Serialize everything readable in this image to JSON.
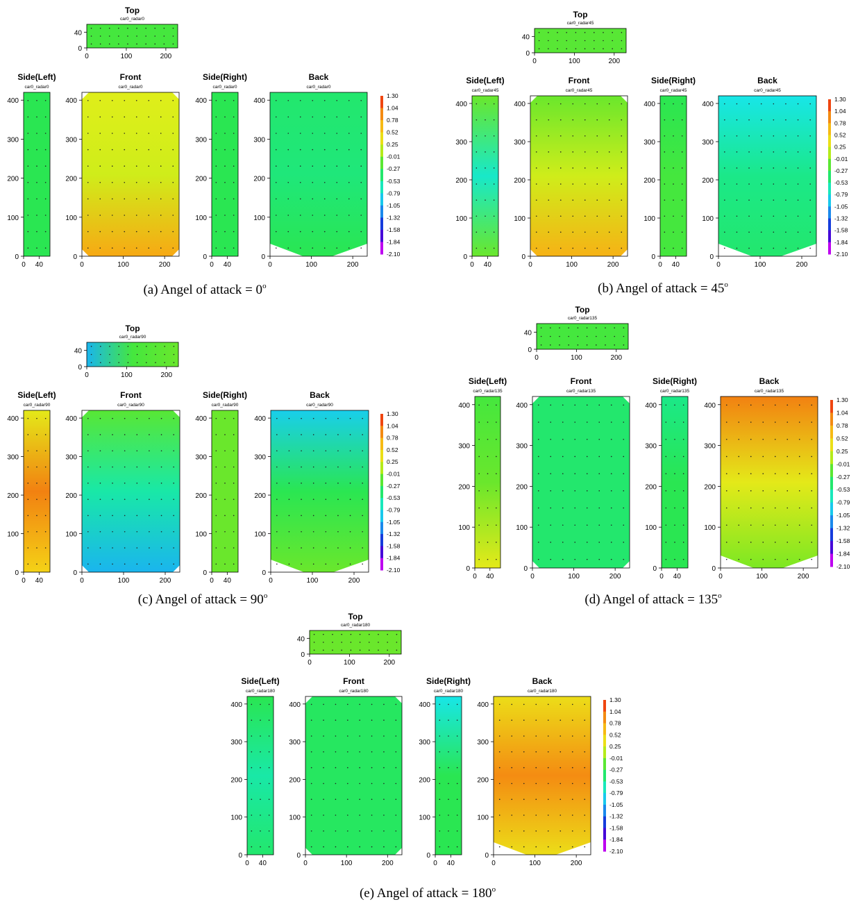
{
  "colors": {
    "scale": [
      "#ff00ff",
      "#7a00e0",
      "#1010d0",
      "#1a6ae8",
      "#1aa8f0",
      "#18e8e8",
      "#19e890",
      "#2ce64a",
      "#8ce81c",
      "#e0ee1a",
      "#f5d016",
      "#f7a514",
      "#f06f10",
      "#ee1e10"
    ]
  },
  "chart_data": {
    "type": "heatmap",
    "description_units": {
      "x": "position",
      "y": "position"
    },
    "colorbar": {
      "min": -2.1,
      "max": 1.3,
      "ticks": [
        "1.30",
        "1.04",
        "0.78",
        "0.52",
        "0.25",
        "-0.01",
        "-0.27",
        "-0.53",
        "-0.79",
        "-1.05",
        "-1.32",
        "-1.58",
        "-1.84",
        "-2.10"
      ]
    },
    "views": [
      {
        "title": "Top",
        "xlim": [
          0,
          230
        ],
        "ylim": [
          0,
          60
        ],
        "xticks": [
          "0",
          "100",
          "200"
        ],
        "yticks": [
          "0",
          "40"
        ]
      },
      {
        "title": "Side(Left)",
        "xlim": [
          0,
          68
        ],
        "ylim": [
          0,
          420
        ],
        "xticks": [
          "0",
          "40"
        ],
        "yticks": [
          "0",
          "100",
          "200",
          "300",
          "400"
        ]
      },
      {
        "title": "Front",
        "xlim": [
          0,
          235
        ],
        "ylim": [
          0,
          420
        ],
        "xticks": [
          "0",
          "100",
          "200"
        ],
        "yticks": [
          "0",
          "100",
          "200",
          "300",
          "400"
        ]
      },
      {
        "title": "Side(Right)",
        "xlim": [
          0,
          68
        ],
        "ylim": [
          0,
          420
        ],
        "xticks": [
          "0",
          "40"
        ],
        "yticks": [
          "0",
          "100",
          "200",
          "300",
          "400"
        ]
      },
      {
        "title": "Back",
        "xlim": [
          0,
          235
        ],
        "ylim": [
          0,
          420
        ],
        "xticks": [
          "0",
          "100",
          "200"
        ],
        "yticks": [
          "0",
          "100",
          "200",
          "300",
          "400"
        ]
      }
    ],
    "panels": [
      {
        "caption_label": "(a) Angel of attack = 0",
        "caption_sup": "o",
        "subtitles": [
          "car0_radar0",
          "car0_radar0",
          "car0_radar0",
          "car0_radar0",
          "car0_radar0"
        ],
        "levels": {
          "top": [
            -0.2,
            -0.2,
            -0.2
          ],
          "left": [
            -0.3,
            -0.3,
            -0.3
          ],
          "front": [
            0.75,
            0.2,
            0.25
          ],
          "right": [
            -0.3,
            -0.3,
            -0.3
          ],
          "back": [
            -0.3,
            -0.45,
            -0.4
          ]
        }
      },
      {
        "caption_label": "(b) Angel of attack = 45",
        "caption_sup": "o",
        "subtitles": [
          "car0_radar45",
          "car0_radar45",
          "car0_radar45",
          "car0_radar45",
          "car0_radar45"
        ],
        "levels": {
          "top": [
            -0.15,
            -0.15,
            -0.15
          ],
          "left": [
            -0.1,
            -0.7,
            -0.1
          ],
          "front": [
            0.7,
            0.2,
            -0.1
          ],
          "right": [
            -0.2,
            -0.2,
            -0.3
          ],
          "back": [
            -0.4,
            -0.5,
            -0.8
          ]
        }
      },
      {
        "caption_label": "(c) Angel of attack = 90",
        "caption_sup": "o",
        "subtitles": [
          "car0_radar90",
          "car0_radar90",
          "car0_radar90",
          "car0_radar90",
          "car0_radar90"
        ],
        "levels": {
          "top": [
            -1.0,
            -0.2,
            -0.1
          ],
          "left": [
            0.5,
            0.95,
            0.3
          ],
          "front": [
            -1.0,
            -0.6,
            -0.15
          ],
          "right": [
            -0.1,
            -0.1,
            -0.1
          ],
          "back": [
            -0.1,
            -0.3,
            -0.9
          ]
        }
      },
      {
        "caption_label": "(d) Angel of attack = 135",
        "caption_sup": "o",
        "subtitles": [
          "car0_radar135",
          "car0_radar135",
          "car0_radar135",
          "car0_radar135",
          "car0_radar135"
        ],
        "levels": {
          "top": [
            -0.2,
            -0.2,
            -0.2
          ],
          "left": [
            0.3,
            -0.1,
            -0.2
          ],
          "front": [
            -0.4,
            -0.4,
            -0.4
          ],
          "right": [
            -0.3,
            -0.3,
            -0.5
          ],
          "back": [
            -0.05,
            0.3,
            0.95
          ]
        }
      },
      {
        "caption_label": "(e) Angel of attack = 180",
        "caption_sup": "o",
        "subtitles": [
          "car0_radar180",
          "car0_radar180",
          "car0_radar180",
          "car0_radar180",
          "car0_radar180"
        ],
        "levels": {
          "top": [
            -0.1,
            -0.1,
            -0.1
          ],
          "left": [
            -0.4,
            -0.6,
            -0.3
          ],
          "front": [
            -0.35,
            -0.35,
            -0.35
          ],
          "right": [
            -0.3,
            -0.3,
            -0.8
          ],
          "back": [
            0.4,
            0.9,
            0.4
          ]
        }
      }
    ]
  }
}
